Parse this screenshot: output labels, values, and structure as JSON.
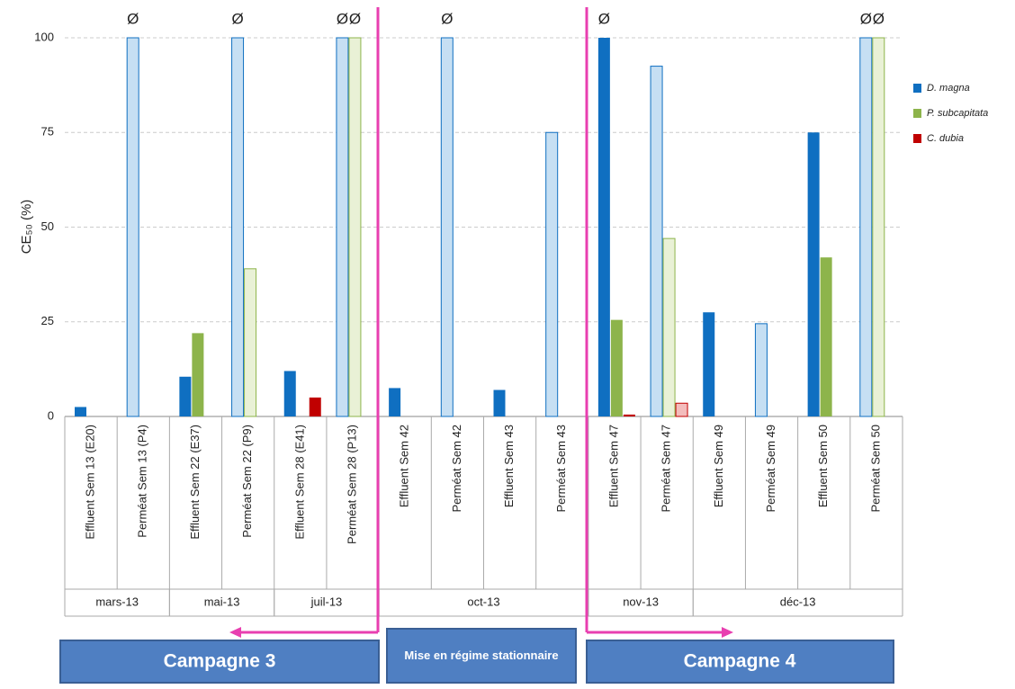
{
  "chart_data": {
    "type": "bar",
    "y_label": "CE₅₀ (%)",
    "categories": [
      "Effluent Sem 13 (E20)",
      "Perméat Sem 13 (P4)",
      "Effluent Sem 22 (E37)",
      "Perméat Sem 22 (P9)",
      "Effluent Sem 28 (E41)",
      "Perméat Sem 28 (P13)",
      "Effluent Sem 42",
      "Perméat Sem 42",
      "Effluent Sem 43",
      "Perméat Sem 43",
      "Effluent Sem 47",
      "Perméat Sem 47",
      "Effluent Sem 49",
      "Perméat Sem 49",
      "Effluent Sem 50",
      "Perméat Sem 50"
    ],
    "light": [
      false,
      true,
      false,
      true,
      false,
      true,
      false,
      true,
      false,
      true,
      false,
      true,
      false,
      true,
      false,
      true
    ],
    "groups": [
      {
        "label": "mars-13",
        "span": 2
      },
      {
        "label": "mai-13",
        "span": 2
      },
      {
        "label": "juil-13",
        "span": 2
      },
      {
        "label": "oct-13",
        "span": 4
      },
      {
        "label": "nov-13",
        "span": 2
      },
      {
        "label": "déc-13",
        "span": 4
      }
    ],
    "series": [
      {
        "name": "D. magna",
        "color": "#0f6fc1",
        "light_color": "#c6dff3",
        "values": [
          2.5,
          100,
          10.5,
          100,
          12,
          100,
          7.5,
          100,
          7,
          75,
          100,
          92.5,
          27.5,
          24.5,
          75,
          100
        ],
        "flags": [
          null,
          "Ø",
          null,
          "Ø",
          null,
          "Ø",
          null,
          "Ø",
          null,
          null,
          "Ø",
          null,
          null,
          null,
          null,
          "Ø"
        ]
      },
      {
        "name": "P. subcapitata",
        "color": "#8db44b",
        "light_color": "#e9f1d6",
        "values": [
          null,
          null,
          22,
          39,
          null,
          100,
          null,
          null,
          null,
          null,
          25.5,
          47,
          null,
          null,
          42,
          100
        ],
        "flags": [
          null,
          null,
          null,
          null,
          null,
          "Ø",
          null,
          null,
          null,
          null,
          null,
          null,
          null,
          null,
          null,
          "Ø"
        ]
      },
      {
        "name": "C. dubia",
        "color": "#c00000",
        "light_color": "#f3bcbc",
        "values": [
          null,
          null,
          null,
          null,
          5,
          null,
          null,
          null,
          null,
          null,
          0.5,
          3.5,
          null,
          null,
          null,
          null
        ],
        "flags": [
          null,
          null,
          null,
          null,
          null,
          null,
          null,
          null,
          null,
          null,
          null,
          null,
          null,
          null,
          null,
          null
        ]
      }
    ],
    "ylim": [
      0,
      100
    ],
    "yticks": [
      0,
      25,
      50,
      75,
      100
    ],
    "grid": true,
    "campaigns": [
      "Campagne 3",
      "Mise en régime stationnaire",
      "Campagne 4"
    ]
  }
}
